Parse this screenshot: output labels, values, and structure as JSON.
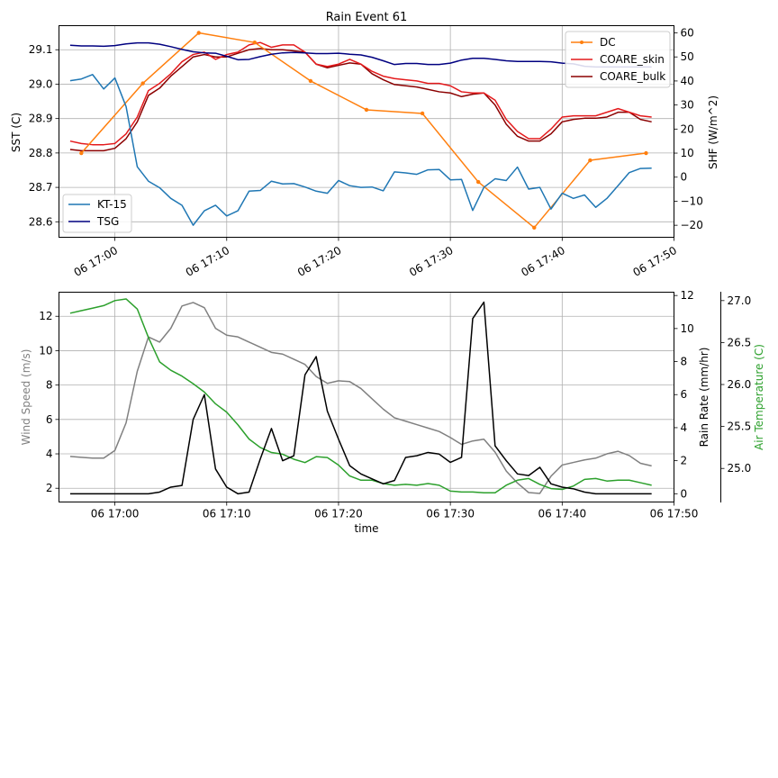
{
  "chart_data": [
    {
      "type": "line",
      "title": "Rain Event 61",
      "xlabel": "",
      "x_time_domain": [
        "06 16:55",
        "06 17:50"
      ],
      "x_ticks": [
        "06 17:00",
        "06 17:10",
        "06 17:20",
        "06 17:30",
        "06 17:40",
        "06 17:50"
      ],
      "left_axis": {
        "label": "SST (C)",
        "ylim": [
          28.555,
          29.17
        ],
        "ticks": [
          "28.6",
          "28.7",
          "28.8",
          "28.9",
          "29.0",
          "29.1"
        ]
      },
      "right_axis": {
        "label": "SHF (W/m^2)",
        "ylim": [
          -25,
          63
        ],
        "ticks": [
          "−20",
          "−10",
          "0",
          "10",
          "20",
          "30",
          "40",
          "50",
          "60"
        ]
      },
      "legends": [
        {
          "placement": "lower-left",
          "entries": [
            "KT-15",
            "TSG"
          ]
        },
        {
          "placement": "upper-right",
          "entries": [
            "DC",
            "COARE_skin",
            "COARE_bulk"
          ]
        }
      ],
      "grid": true,
      "series": [
        {
          "name": "KT-15",
          "axis": "left",
          "color": "#1f77b4",
          "x": [
            "16:56",
            "16:57",
            "16:58",
            "16:59",
            "17:00",
            "17:01",
            "17:02",
            "17:03",
            "17:04",
            "17:05",
            "17:06",
            "17:07",
            "17:08",
            "17:09",
            "17:10",
            "17:11",
            "17:12",
            "17:13",
            "17:14",
            "17:15",
            "17:16",
            "17:17",
            "17:18",
            "17:19",
            "17:20",
            "17:21",
            "17:22",
            "17:23",
            "17:24",
            "17:25",
            "17:26",
            "17:27",
            "17:28",
            "17:29",
            "17:30",
            "17:31",
            "17:32",
            "17:33",
            "17:34",
            "17:35",
            "17:36",
            "17:37",
            "17:38",
            "17:39",
            "17:40",
            "17:41",
            "17:42",
            "17:43",
            "17:44",
            "17:45",
            "17:46",
            "17:47",
            "17:48"
          ],
          "values": [
            29.01,
            29.015,
            29.028,
            28.986,
            29.018,
            28.935,
            28.76,
            28.718,
            28.699,
            28.668,
            28.648,
            28.59,
            28.632,
            28.648,
            28.617,
            28.632,
            28.689,
            28.691,
            28.718,
            28.71,
            28.711,
            28.701,
            28.689,
            28.683,
            28.72,
            28.705,
            28.7,
            28.701,
            28.69,
            28.745,
            28.742,
            28.738,
            28.751,
            28.752,
            28.722,
            28.723,
            28.633,
            28.7,
            28.725,
            28.72,
            28.759,
            28.695,
            28.7,
            28.637,
            28.683,
            28.668,
            28.678,
            28.642,
            28.668,
            28.705,
            28.743,
            28.755,
            28.756
          ]
        },
        {
          "name": "TSG",
          "axis": "left",
          "color": "#000080",
          "x": [
            "16:56",
            "16:57",
            "16:58",
            "16:59",
            "17:00",
            "17:01",
            "17:02",
            "17:03",
            "17:04",
            "17:05",
            "17:06",
            "17:07",
            "17:08",
            "17:09",
            "17:10",
            "17:11",
            "17:12",
            "17:13",
            "17:14",
            "17:15",
            "17:16",
            "17:17",
            "17:18",
            "17:19",
            "17:20",
            "17:21",
            "17:22",
            "17:23",
            "17:24",
            "17:25",
            "17:26",
            "17:27",
            "17:28",
            "17:29",
            "17:30",
            "17:31",
            "17:32",
            "17:33",
            "17:34",
            "17:35",
            "17:36",
            "17:37",
            "17:38",
            "17:39",
            "17:40",
            "17:41",
            "17:42",
            "17:43",
            "17:44",
            "17:45",
            "17:46",
            "17:47",
            "17:48"
          ],
          "values": [
            29.113,
            29.111,
            29.111,
            29.11,
            29.112,
            29.117,
            29.12,
            29.12,
            29.116,
            29.109,
            29.101,
            29.094,
            29.091,
            29.09,
            29.081,
            29.071,
            29.072,
            29.08,
            29.087,
            29.091,
            29.092,
            29.091,
            29.089,
            29.089,
            29.09,
            29.087,
            29.085,
            29.078,
            29.068,
            29.057,
            29.06,
            29.06,
            29.057,
            29.057,
            29.061,
            29.07,
            29.075,
            29.075,
            29.072,
            29.068,
            29.066,
            29.066,
            29.066,
            29.065,
            29.061,
            29.059,
            29.052,
            29.05,
            29.05,
            29.05,
            29.05,
            29.05,
            29.05
          ]
        },
        {
          "name": "DC",
          "axis": "right",
          "color": "#ff7f0e",
          "markers": true,
          "x": [
            "16:57",
            "17:02:30",
            "17:07:30",
            "17:12:30",
            "17:17:30",
            "17:22:30",
            "17:27:30",
            "17:32:30",
            "17:37:30",
            "17:42:30",
            "17:47:30"
          ],
          "values": [
            10,
            39,
            60,
            56,
            40,
            28,
            26.5,
            -2,
            -21,
            7,
            10
          ]
        },
        {
          "name": "COARE_skin",
          "axis": "right",
          "color": "#e41a1c",
          "x": [
            "16:56",
            "16:57",
            "16:58",
            "16:59",
            "17:00",
            "17:01",
            "17:02",
            "17:03",
            "17:04",
            "17:05",
            "17:06",
            "17:07",
            "17:08",
            "17:09",
            "17:10",
            "17:11",
            "17:12",
            "17:13",
            "17:14",
            "17:15",
            "17:16",
            "17:17",
            "17:18",
            "17:19",
            "17:20",
            "17:21",
            "17:22",
            "17:23",
            "17:24",
            "17:25",
            "17:26",
            "17:27",
            "17:28",
            "17:29",
            "17:30",
            "17:31",
            "17:32",
            "17:33",
            "17:34",
            "17:35",
            "17:36",
            "17:37",
            "17:38",
            "17:39",
            "17:40",
            "17:41",
            "17:42",
            "17:43",
            "17:44",
            "17:45",
            "17:46",
            "17:47",
            "17:48"
          ],
          "values": [
            15,
            14,
            13.5,
            13.5,
            14,
            18,
            25,
            36,
            39,
            43,
            48,
            51,
            52,
            49,
            51,
            52,
            55,
            56,
            54,
            55,
            55,
            52,
            47,
            46,
            47,
            49,
            47,
            44,
            42,
            41,
            40.5,
            40,
            39,
            39,
            38,
            35.5,
            35,
            35,
            32,
            24,
            19,
            16,
            16,
            20,
            25,
            25.5,
            25.5,
            25.5,
            27,
            28.5,
            27,
            25.5,
            25
          ]
        },
        {
          "name": "COARE_bulk",
          "axis": "right",
          "color": "#8b0000",
          "x": [
            "16:56",
            "16:57",
            "16:58",
            "16:59",
            "17:00",
            "17:01",
            "17:02",
            "17:03",
            "17:04",
            "17:05",
            "17:06",
            "17:07",
            "17:08",
            "17:09",
            "17:10",
            "17:11",
            "17:12",
            "17:13",
            "17:14",
            "17:15",
            "17:16",
            "17:17",
            "17:18",
            "17:19",
            "17:20",
            "17:21",
            "17:22",
            "17:23",
            "17:24",
            "17:25",
            "17:26",
            "17:27",
            "17:28",
            "17:29",
            "17:30",
            "17:31",
            "17:32",
            "17:33",
            "17:34",
            "17:35",
            "17:36",
            "17:37",
            "17:38",
            "17:39",
            "17:40",
            "17:41",
            "17:42",
            "17:43",
            "17:44",
            "17:45",
            "17:46",
            "17:47",
            "17:48"
          ],
          "values": [
            11.5,
            11,
            11,
            11,
            12,
            16,
            23,
            34,
            37,
            42,
            46,
            50,
            51,
            50,
            50,
            51.5,
            53,
            53.5,
            53,
            53,
            52.5,
            52,
            47,
            45.5,
            46.5,
            47.5,
            47,
            43,
            40.5,
            38.5,
            38,
            37.5,
            36.5,
            35.5,
            35,
            33.5,
            34.5,
            35,
            30,
            22,
            17,
            15,
            15,
            18,
            23,
            24,
            24.5,
            24.5,
            25,
            27,
            27,
            24,
            23
          ]
        }
      ]
    },
    {
      "type": "line",
      "title": "",
      "xlabel": "time",
      "x_time_domain": [
        "06 16:55",
        "06 17:50"
      ],
      "x_ticks": [
        "06 17:00",
        "06 17:10",
        "06 17:20",
        "06 17:30",
        "06 17:40",
        "06 17:50"
      ],
      "axes": [
        {
          "id": "ws",
          "label": "Wind Speed (m/s)",
          "color": "#808080",
          "ylim": [
            1.2,
            13.4
          ],
          "ticks": [
            "2",
            "4",
            "6",
            "8",
            "10",
            "12"
          ]
        },
        {
          "id": "rr",
          "label": "Rain Rate (mm/hr)",
          "color": "#000000",
          "ylim": [
            -0.5,
            12.2
          ],
          "ticks": [
            "0",
            "2",
            "4",
            "6",
            "8",
            "10",
            "12"
          ]
        },
        {
          "id": "at",
          "label": "Air Temperature (C)",
          "color": "#2ca02c",
          "ylim": [
            24.6,
            27.1
          ],
          "ticks": [
            "25.0",
            "25.5",
            "26.0",
            "26.5",
            "27.0"
          ]
        }
      ],
      "grid": true,
      "series": [
        {
          "name": "",
          "axis": "ws",
          "color": "#808080",
          "x": [
            "16:56",
            "16:57",
            "16:58",
            "16:59",
            "17:00",
            "17:01",
            "17:02",
            "17:03",
            "17:04",
            "17:05",
            "17:06",
            "17:07",
            "17:08",
            "17:09",
            "17:10",
            "17:11",
            "17:12",
            "17:13",
            "17:14",
            "17:15",
            "17:16",
            "17:17",
            "17:18",
            "17:19",
            "17:20",
            "17:21",
            "17:22",
            "17:23",
            "17:24",
            "17:25",
            "17:26",
            "17:27",
            "17:28",
            "17:29",
            "17:30",
            "17:31",
            "17:32",
            "17:33",
            "17:34",
            "17:35",
            "17:36",
            "17:37",
            "17:38",
            "17:39",
            "17:40",
            "17:41",
            "17:42",
            "17:43",
            "17:44",
            "17:45",
            "17:46",
            "17:47",
            "17:48"
          ],
          "values": [
            3.85,
            3.8,
            3.75,
            3.75,
            4.2,
            5.8,
            8.8,
            10.8,
            10.5,
            11.3,
            12.6,
            12.8,
            12.5,
            11.3,
            10.9,
            10.8,
            10.5,
            10.2,
            9.9,
            9.8,
            9.5,
            9.2,
            8.5,
            8.1,
            8.25,
            8.2,
            7.8,
            7.2,
            6.6,
            6.1,
            5.9,
            5.7,
            5.5,
            5.3,
            4.95,
            4.55,
            4.75,
            4.85,
            4.1,
            3.0,
            2.3,
            1.75,
            1.7,
            2.7,
            3.35,
            3.5,
            3.65,
            3.75,
            4.0,
            4.15,
            3.9,
            3.45,
            3.3
          ]
        },
        {
          "name": "",
          "axis": "rr",
          "color": "#000000",
          "x": [
            "16:56",
            "16:57",
            "16:58",
            "16:59",
            "17:00",
            "17:01",
            "17:02",
            "17:03",
            "17:04",
            "17:05",
            "17:06",
            "17:07",
            "17:08",
            "17:09",
            "17:10",
            "17:11",
            "17:12",
            "17:13",
            "17:14",
            "17:15",
            "17:16",
            "17:17",
            "17:18",
            "17:19",
            "17:20",
            "17:21",
            "17:22",
            "17:23",
            "17:24",
            "17:25",
            "17:26",
            "17:27",
            "17:28",
            "17:29",
            "17:30",
            "17:31",
            "17:32",
            "17:33",
            "17:34",
            "17:35",
            "17:36",
            "17:37",
            "17:38",
            "17:39",
            "17:40",
            "17:41",
            "17:42",
            "17:43",
            "17:44",
            "17:45",
            "17:46",
            "17:47",
            "17:48"
          ],
          "values": [
            0,
            0,
            0,
            0,
            0,
            0,
            0,
            0,
            0.1,
            0.4,
            0.5,
            4.5,
            6.0,
            1.5,
            0.4,
            0,
            0.1,
            2.1,
            3.95,
            2.0,
            2.3,
            7.2,
            8.3,
            5.0,
            3.3,
            1.7,
            1.2,
            0.9,
            0.6,
            0.8,
            2.2,
            2.3,
            2.5,
            2.4,
            1.9,
            2.2,
            10.6,
            11.6,
            2.9,
            2.0,
            1.2,
            1.1,
            1.6,
            0.6,
            0.4,
            0.3,
            0.1,
            0,
            0,
            0,
            0,
            0,
            0
          ]
        },
        {
          "name": "",
          "axis": "at",
          "color": "#2ca02c",
          "x": [
            "16:56",
            "16:57",
            "16:58",
            "16:59",
            "17:00",
            "17:01",
            "17:02",
            "17:03",
            "17:04",
            "17:05",
            "17:06",
            "17:07",
            "17:08",
            "17:09",
            "17:10",
            "17:11",
            "17:12",
            "17:13",
            "17:14",
            "17:15",
            "17:16",
            "17:17",
            "17:18",
            "17:19",
            "17:20",
            "17:21",
            "17:22",
            "17:23",
            "17:24",
            "17:25",
            "17:26",
            "17:27",
            "17:28",
            "17:29",
            "17:30",
            "17:31",
            "17:32",
            "17:33",
            "17:34",
            "17:35",
            "17:36",
            "17:37",
            "17:38",
            "17:39",
            "17:40",
            "17:41",
            "17:42",
            "17:43",
            "17:44",
            "17:45",
            "17:46",
            "17:47",
            "17:48"
          ],
          "values": [
            26.85,
            26.88,
            26.91,
            26.94,
            27.0,
            27.02,
            26.9,
            26.56,
            26.27,
            26.17,
            26.1,
            26.01,
            25.91,
            25.77,
            25.67,
            25.52,
            25.35,
            25.25,
            25.19,
            25.17,
            25.11,
            25.07,
            25.14,
            25.13,
            25.04,
            24.91,
            24.86,
            24.86,
            24.82,
            24.8,
            24.81,
            24.8,
            24.82,
            24.8,
            24.73,
            24.72,
            24.72,
            24.71,
            24.71,
            24.8,
            24.86,
            24.88,
            24.81,
            24.76,
            24.75,
            24.79,
            24.87,
            24.88,
            24.85,
            24.86,
            24.86,
            24.83,
            24.8
          ]
        }
      ]
    }
  ]
}
